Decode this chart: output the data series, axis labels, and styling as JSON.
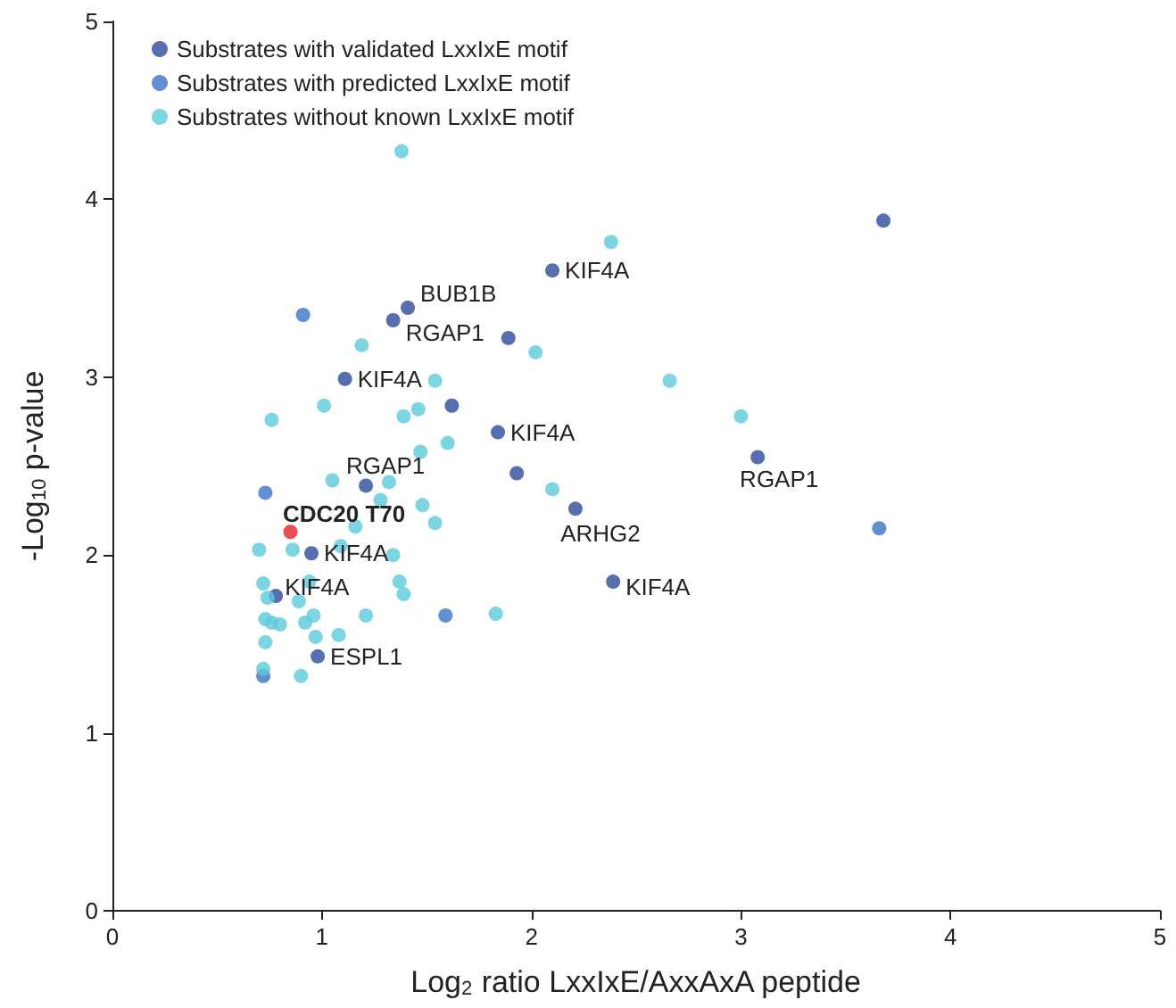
{
  "chart_data": {
    "type": "scatter",
    "xlabel": "Log$_{2}$ ratio LxxIxE/AxxAxA peptide",
    "ylabel": "-Log$_{10}$ p-value",
    "xlim": [
      0,
      5
    ],
    "xticks": [
      0,
      1,
      2,
      3,
      4,
      5
    ],
    "ylim": [
      0,
      5
    ],
    "yticks": [
      0,
      1,
      2,
      3,
      4,
      5
    ],
    "grid": false,
    "legend": "top left",
    "marker": "circle",
    "series": [
      {
        "name": "Substrates with validated LxxIxE motif",
        "color": "#2d4a9b",
        "x": [
          2.1,
          1.41,
          1.34,
          1.89,
          1.11,
          1.62,
          1.84,
          1.93,
          1.21,
          2.21,
          0.95,
          0.78,
          2.39,
          0.98,
          3.08,
          3.68
        ],
        "values": [
          3.6,
          3.39,
          3.32,
          3.22,
          2.99,
          2.84,
          2.69,
          2.46,
          2.39,
          2.26,
          2.01,
          1.77,
          1.85,
          1.43,
          2.55,
          3.88
        ]
      },
      {
        "name": "Substrates with predicted LxxIxE motif",
        "color": "#3b73c3",
        "x": [
          0.91,
          0.73,
          1.59,
          0.72,
          3.66
        ],
        "values": [
          3.35,
          2.35,
          1.66,
          1.32,
          2.15
        ]
      },
      {
        "name": "Substrates without known LxxIxE motif",
        "color": "#5ecbdb",
        "x": [
          1.38,
          2.38,
          2.02,
          2.66,
          3.0,
          2.1,
          1.19,
          1.54,
          1.01,
          1.39,
          1.46,
          0.76,
          1.6,
          1.47,
          1.05,
          1.32,
          1.48,
          1.28,
          1.54,
          1.16,
          0.7,
          0.86,
          1.09,
          1.34,
          0.72,
          0.94,
          1.37,
          1.39,
          0.74,
          0.89,
          1.21,
          1.83,
          0.73,
          0.76,
          0.8,
          0.92,
          0.96,
          0.97,
          1.08,
          0.73,
          0.72,
          0.9
        ],
        "values": [
          4.27,
          3.76,
          3.14,
          2.98,
          2.78,
          2.37,
          3.18,
          2.98,
          2.84,
          2.78,
          2.82,
          2.76,
          2.63,
          2.58,
          2.42,
          2.41,
          2.28,
          2.31,
          2.18,
          2.16,
          2.03,
          2.03,
          2.05,
          2.0,
          1.84,
          1.85,
          1.85,
          1.78,
          1.76,
          1.74,
          1.66,
          1.67,
          1.64,
          1.62,
          1.61,
          1.62,
          1.66,
          1.54,
          1.55,
          1.51,
          1.36,
          1.32
        ]
      },
      {
        "color": "#e8202a",
        "x": [
          0.85
        ],
        "values": [
          2.13
        ]
      }
    ],
    "annotations": [
      {
        "text": "KIF4A",
        "x": 2.1,
        "y": 3.6
      },
      {
        "text": "BUB1B",
        "x": 1.41,
        "y": 3.39
      },
      {
        "text": "RGAP1",
        "x": 1.34,
        "y": 3.32
      },
      {
        "text": "KIF4A",
        "x": 1.11,
        "y": 2.99
      },
      {
        "text": "KIF4A",
        "x": 1.84,
        "y": 2.69
      },
      {
        "text": "RGAP1",
        "x": 1.21,
        "y": 2.39
      },
      {
        "text": "ARHG2",
        "x": 2.21,
        "y": 2.26
      },
      {
        "text": "CDC20 T70",
        "x": 0.85,
        "y": 2.13
      },
      {
        "text": "KIF4A",
        "x": 0.95,
        "y": 2.01
      },
      {
        "text": "KIF4A",
        "x": 0.78,
        "y": 1.77
      },
      {
        "text": "KIF4A",
        "x": 2.39,
        "y": 1.85
      },
      {
        "text": "ESPL1",
        "x": 0.98,
        "y": 1.43
      },
      {
        "text": "RGAP1",
        "x": 3.08,
        "y": 2.55
      }
    ]
  }
}
